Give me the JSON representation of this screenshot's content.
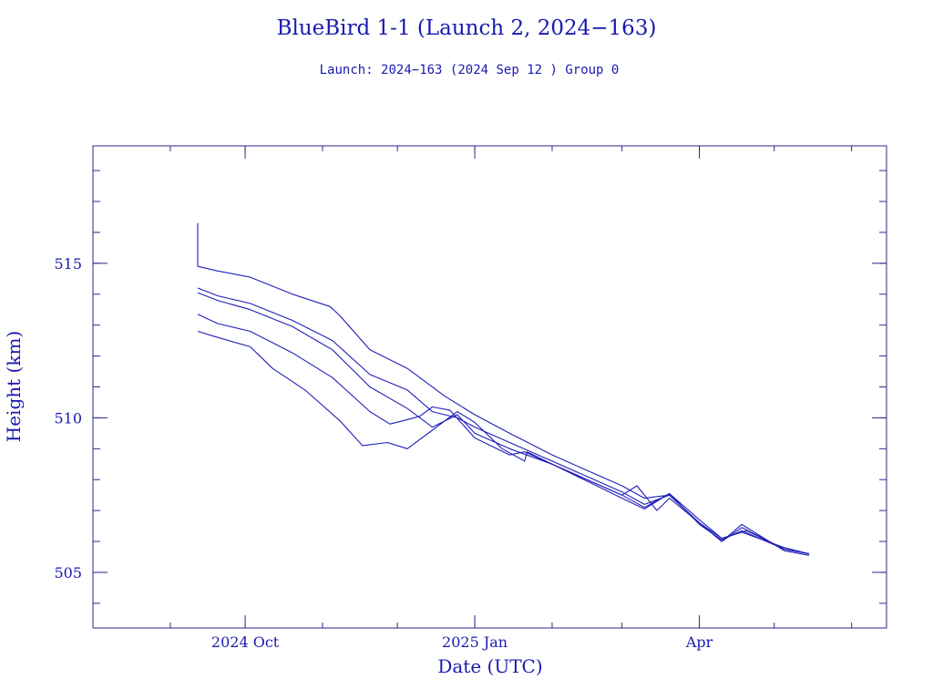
{
  "colors": {
    "ink": "#1a1ab0",
    "frame": "#2a2a8a",
    "series": "#1f1fb8",
    "background": "#ffffff"
  },
  "chart_data": {
    "type": "line",
    "title": "BlueBird 1-1 (Launch 2, 2024−163)",
    "subtitle": "Launch: 2024−163  (2024 Sep 12 )  Group 0",
    "xlabel": "Date (UTC)",
    "ylabel": "Height (km)",
    "x_type": "date",
    "xlim": [
      "2024-08-01",
      "2025-06-15"
    ],
    "ylim": [
      503.2,
      518.8
    ],
    "x_ticks": [
      {
        "date": "2024-10-01",
        "label": "2024 Oct"
      },
      {
        "date": "2025-01-01",
        "label": "2025 Jan"
      },
      {
        "date": "2025-04-01",
        "label": "Apr"
      }
    ],
    "x_minor_ticks": [
      "2024-08-01",
      "2024-09-01",
      "2024-10-01",
      "2024-11-01",
      "2024-12-01",
      "2025-01-01",
      "2025-02-01",
      "2025-03-01",
      "2025-04-01",
      "2025-05-01",
      "2025-06-01"
    ],
    "y_ticks": [
      {
        "value": 505,
        "label": "505"
      },
      {
        "value": 510,
        "label": "510"
      },
      {
        "value": 515,
        "label": "515"
      }
    ],
    "y_minor_step": 1,
    "grid": false,
    "legend": "none",
    "series": [
      {
        "points": [
          [
            "2024-09-12",
            516.3
          ],
          [
            "2024-09-12",
            514.9
          ],
          [
            "2024-09-20",
            514.75
          ],
          [
            "2024-10-03",
            514.55
          ],
          [
            "2024-10-20",
            514.0
          ],
          [
            "2024-11-04",
            513.6
          ],
          [
            "2024-11-08",
            513.3
          ],
          [
            "2024-11-20",
            512.2
          ],
          [
            "2024-12-05",
            511.6
          ],
          [
            "2024-12-20",
            510.7
          ],
          [
            "2025-01-01",
            510.1
          ],
          [
            "2025-01-15",
            509.5
          ],
          [
            "2025-02-01",
            508.8
          ],
          [
            "2025-02-15",
            508.3
          ],
          [
            "2025-03-01",
            507.8
          ],
          [
            "2025-03-10",
            507.4
          ],
          [
            "2025-03-20",
            507.5
          ],
          [
            "2025-04-01",
            506.6
          ],
          [
            "2025-04-10",
            506.1
          ],
          [
            "2025-04-20",
            506.35
          ],
          [
            "2025-05-05",
            505.75
          ],
          [
            "2025-05-15",
            505.6
          ]
        ]
      },
      {
        "points": [
          [
            "2024-09-12",
            514.2
          ],
          [
            "2024-09-20",
            513.95
          ],
          [
            "2024-10-03",
            513.7
          ],
          [
            "2024-10-20",
            513.15
          ],
          [
            "2024-11-05",
            512.5
          ],
          [
            "2024-11-20",
            511.4
          ],
          [
            "2024-12-05",
            510.9
          ],
          [
            "2024-12-15",
            510.2
          ],
          [
            "2024-12-25",
            510.0
          ],
          [
            "2025-01-01",
            509.7
          ],
          [
            "2025-01-15",
            509.2
          ],
          [
            "2025-02-01",
            508.6
          ],
          [
            "2025-02-15",
            508.1
          ],
          [
            "2025-03-01",
            507.6
          ],
          [
            "2025-03-10",
            507.2
          ],
          [
            "2025-03-20",
            507.5
          ],
          [
            "2025-04-01",
            506.6
          ],
          [
            "2025-04-10",
            506.0
          ],
          [
            "2025-04-18",
            506.55
          ],
          [
            "2025-05-05",
            505.7
          ],
          [
            "2025-05-15",
            505.55
          ]
        ]
      },
      {
        "points": [
          [
            "2024-09-12",
            514.05
          ],
          [
            "2024-09-20",
            513.8
          ],
          [
            "2024-10-03",
            513.5
          ],
          [
            "2024-10-20",
            512.95
          ],
          [
            "2024-11-05",
            512.2
          ],
          [
            "2024-11-20",
            511.0
          ],
          [
            "2024-12-05",
            510.3
          ],
          [
            "2024-12-15",
            509.7
          ],
          [
            "2024-12-25",
            510.1
          ],
          [
            "2025-01-01",
            509.5
          ],
          [
            "2025-01-15",
            509.0
          ],
          [
            "2025-02-01",
            508.5
          ],
          [
            "2025-02-15",
            508.0
          ],
          [
            "2025-03-01",
            507.5
          ],
          [
            "2025-03-10",
            507.1
          ],
          [
            "2025-03-20",
            507.55
          ],
          [
            "2025-04-01",
            506.7
          ],
          [
            "2025-04-10",
            506.1
          ],
          [
            "2025-04-18",
            506.3
          ],
          [
            "2025-05-05",
            505.8
          ],
          [
            "2025-05-15",
            505.6
          ]
        ]
      },
      {
        "points": [
          [
            "2024-09-12",
            513.35
          ],
          [
            "2024-09-20",
            513.05
          ],
          [
            "2024-10-03",
            512.8
          ],
          [
            "2024-10-20",
            512.1
          ],
          [
            "2024-11-05",
            511.3
          ],
          [
            "2024-11-20",
            510.2
          ],
          [
            "2024-11-28",
            509.8
          ],
          [
            "2024-12-03",
            509.9
          ],
          [
            "2024-12-10",
            510.05
          ],
          [
            "2024-12-15",
            510.35
          ],
          [
            "2024-12-22",
            510.25
          ],
          [
            "2025-01-01",
            509.35
          ],
          [
            "2025-01-15",
            508.8
          ],
          [
            "2025-01-21",
            508.9
          ],
          [
            "2025-02-01",
            508.5
          ],
          [
            "2025-02-15",
            507.95
          ],
          [
            "2025-03-01",
            507.4
          ],
          [
            "2025-03-10",
            507.05
          ],
          [
            "2025-03-20",
            507.55
          ],
          [
            "2025-04-01",
            506.55
          ],
          [
            "2025-04-10",
            506.05
          ],
          [
            "2025-04-18",
            506.35
          ],
          [
            "2025-05-05",
            505.75
          ],
          [
            "2025-05-15",
            505.6
          ]
        ]
      },
      {
        "points": [
          [
            "2024-09-12",
            512.8
          ],
          [
            "2024-09-20",
            512.6
          ],
          [
            "2024-10-03",
            512.3
          ],
          [
            "2024-10-12",
            511.6
          ],
          [
            "2024-10-25",
            510.9
          ],
          [
            "2024-11-08",
            509.9
          ],
          [
            "2024-11-17",
            509.1
          ],
          [
            "2024-11-27",
            509.2
          ],
          [
            "2024-12-05",
            509.0
          ],
          [
            "2024-12-15",
            509.6
          ],
          [
            "2024-12-25",
            510.2
          ],
          [
            "2025-01-01",
            509.85
          ],
          [
            "2025-01-12",
            509.0
          ],
          [
            "2025-01-21",
            508.6
          ],
          [
            "2025-01-22",
            508.9
          ],
          [
            "2025-02-01",
            508.5
          ],
          [
            "2025-02-15",
            508.0
          ],
          [
            "2025-03-01",
            507.5
          ],
          [
            "2025-03-07",
            507.8
          ],
          [
            "2025-03-15",
            507.0
          ],
          [
            "2025-03-20",
            507.4
          ],
          [
            "2025-04-01",
            506.6
          ],
          [
            "2025-04-10",
            506.0
          ],
          [
            "2025-04-18",
            506.45
          ],
          [
            "2025-05-05",
            505.75
          ],
          [
            "2025-05-15",
            505.6
          ]
        ]
      }
    ]
  }
}
